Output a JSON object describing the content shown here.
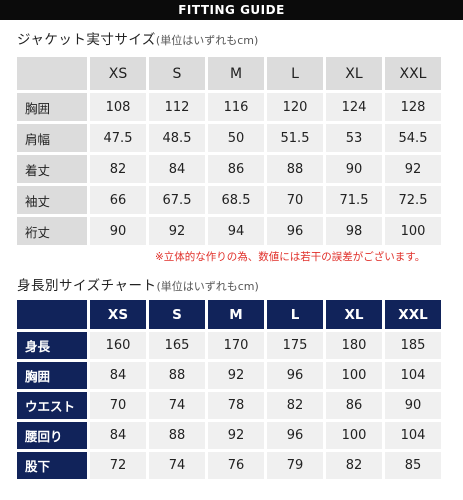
{
  "banner": "FITTING GUIDE",
  "jacket": {
    "title": "ジャケット実寸サイズ",
    "unit": "(単位はいずれもcm)",
    "sizes": [
      "XS",
      "S",
      "M",
      "L",
      "XL",
      "XXL"
    ],
    "rows": [
      {
        "label": "胸囲",
        "values": [
          "108",
          "112",
          "116",
          "120",
          "124",
          "128"
        ]
      },
      {
        "label": "肩幅",
        "values": [
          "47.5",
          "48.5",
          "50",
          "51.5",
          "53",
          "54.5"
        ]
      },
      {
        "label": "着丈",
        "values": [
          "82",
          "84",
          "86",
          "88",
          "90",
          "92"
        ]
      },
      {
        "label": "袖丈",
        "values": [
          "66",
          "67.5",
          "68.5",
          "70",
          "71.5",
          "72.5"
        ]
      },
      {
        "label": "裄丈",
        "values": [
          "90",
          "92",
          "94",
          "96",
          "98",
          "100"
        ]
      }
    ],
    "note": "※立体的な作りの為、数値には若干の誤差がございます。"
  },
  "body": {
    "title": "身長別サイズチャート",
    "unit": "(単位はいずれもcm)",
    "sizes": [
      "XS",
      "S",
      "M",
      "L",
      "XL",
      "XXL"
    ],
    "rows": [
      {
        "label": "身長",
        "values": [
          "160",
          "165",
          "170",
          "175",
          "180",
          "185"
        ]
      },
      {
        "label": "胸囲",
        "values": [
          "84",
          "88",
          "92",
          "96",
          "100",
          "104"
        ]
      },
      {
        "label": "ウエスト",
        "values": [
          "70",
          "74",
          "78",
          "82",
          "86",
          "90"
        ]
      },
      {
        "label": "腰回り",
        "values": [
          "84",
          "88",
          "92",
          "96",
          "100",
          "104"
        ]
      },
      {
        "label": "股下",
        "values": [
          "72",
          "74",
          "76",
          "79",
          "82",
          "85"
        ]
      }
    ]
  }
}
